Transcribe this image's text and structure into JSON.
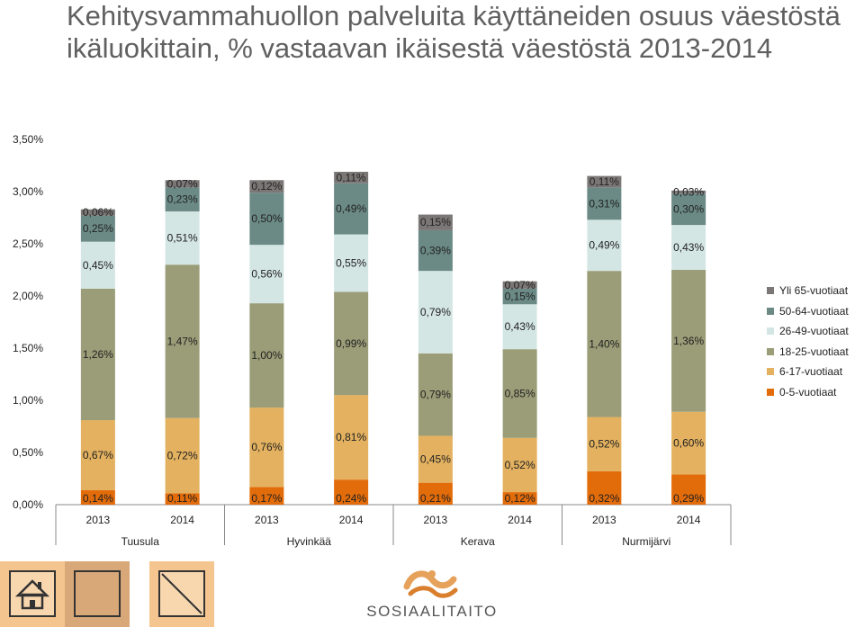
{
  "title": "Kehitysvammahuollon palveluita käyttäneiden osuus väestöstä ikäluokittain, % vastaavan ikäisestä väestöstä 2013-2014",
  "chart_data": {
    "type": "bar",
    "stacked": true,
    "groups": [
      "Tuusula",
      "Hyvinkää",
      "Kerava",
      "Nurmijärvi"
    ],
    "categories": [
      "2013",
      "2014",
      "2013",
      "2014",
      "2013",
      "2014",
      "2013",
      "2014"
    ],
    "ylim": [
      0,
      3.5
    ],
    "yticks": [
      "0,00%",
      "0,50%",
      "1,00%",
      "1,50%",
      "2,00%",
      "2,50%",
      "3,00%",
      "3,50%"
    ],
    "legend_position": "right",
    "series": [
      {
        "name": "0-5-vuotiaat",
        "color": "#e36c0a",
        "values": [
          0.14,
          0.11,
          0.17,
          0.24,
          0.21,
          0.12,
          0.32,
          0.29
        ],
        "labels": [
          "0,14%",
          "0,11%",
          "0,17%",
          "0,24%",
          "0,21%",
          "0,12%",
          "0,32%",
          "0,29%"
        ]
      },
      {
        "name": "6-17-vuotiaat",
        "color": "#e3b15f",
        "values": [
          0.67,
          0.72,
          0.76,
          0.81,
          0.45,
          0.52,
          0.52,
          0.6
        ],
        "labels": [
          "0,67%",
          "0,72%",
          "0,76%",
          "0,81%",
          "0,45%",
          "0,52%",
          "0,52%",
          "0,60%"
        ]
      },
      {
        "name": "18-25-vuotiaat",
        "color": "#9a9d77",
        "values": [
          1.26,
          1.47,
          1.0,
          0.99,
          0.79,
          0.85,
          1.4,
          1.36
        ],
        "labels": [
          "1,26%",
          "1,47%",
          "1,00%",
          "0,99%",
          "0,79%",
          "0,85%",
          "1,40%",
          "1,36%"
        ]
      },
      {
        "name": "26-49-vuotiaat",
        "color": "#d4e6e4",
        "values": [
          0.45,
          0.51,
          0.56,
          0.55,
          0.79,
          0.43,
          0.49,
          0.43
        ],
        "labels": [
          "0,45%",
          "0,51%",
          "0,56%",
          "0,55%",
          "0,79%",
          "0,43%",
          "0,49%",
          "0,43%"
        ]
      },
      {
        "name": "50-64-vuotiaat",
        "color": "#6b8a86",
        "values": [
          0.25,
          0.23,
          0.5,
          0.49,
          0.39,
          0.15,
          0.31,
          0.3
        ],
        "labels": [
          "0,25%",
          "0,23%",
          "0,50%",
          "0,49%",
          "0,39%",
          "0,15%",
          "0,31%",
          "0,30%"
        ]
      },
      {
        "name": "Yli 65-vuotiaat",
        "color": "#7c7777",
        "values": [
          0.06,
          0.07,
          0.12,
          0.11,
          0.15,
          0.07,
          0.11,
          0.03
        ],
        "labels": [
          "0,06%",
          "0,07%",
          "0,12%",
          "0,11%",
          "0,15%",
          "0,07%",
          "0,11%",
          "0,03%"
        ]
      }
    ],
    "legend_order": [
      "Yli 65-vuotiaat",
      "50-64-vuotiaat",
      "26-49-vuotiaat",
      "18-25-vuotiaat",
      "6-17-vuotiaat",
      "0-5-vuotiaat"
    ]
  },
  "footer": {
    "logo_text": "SOSIAALITAITO",
    "home_icon": "home-icon",
    "close_icon": "close-x-icon"
  }
}
